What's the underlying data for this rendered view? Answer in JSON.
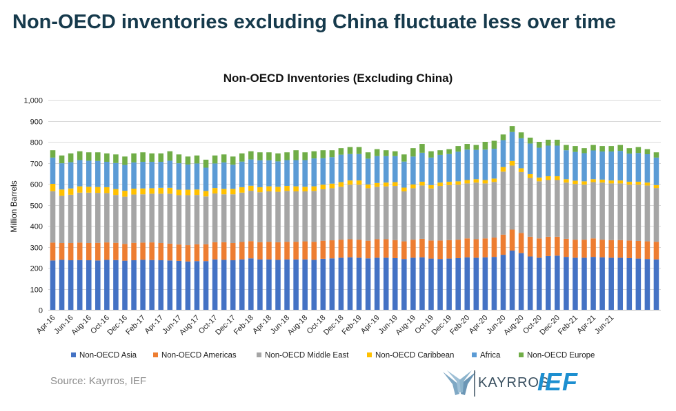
{
  "headline": "Non-OECD inventories excluding China fluctuate less over time",
  "source": "Source: Kayrros, IEF",
  "logos": {
    "kayrros": "KAYRROS",
    "ief": "IEF"
  },
  "chart_data": {
    "type": "bar",
    "stacked": true,
    "title": "Non-OECD Inventories (Excluding China)",
    "xlabel": "",
    "ylabel": "Million Barrels",
    "ylim": [
      0,
      1000
    ],
    "yticks": [
      0,
      100,
      200,
      300,
      400,
      500,
      600,
      700,
      800,
      900,
      1000
    ],
    "ytick_labels": [
      "0",
      "100",
      "200",
      "300",
      "400",
      "500",
      "600",
      "700",
      "800",
      "900",
      "1,000"
    ],
    "grid": true,
    "legend_position": "bottom",
    "xtick_labels": [
      "Apr-16",
      "Jun-16",
      "Aug-16",
      "Oct-16",
      "Dec-16",
      "Feb-17",
      "Apr-17",
      "Jun-17",
      "Aug-17",
      "Oct-17",
      "Dec-17",
      "Feb-18",
      "Apr-18",
      "Jun-18",
      "Aug-18",
      "Oct-18",
      "Dec-18",
      "Feb-19",
      "Apr-19",
      "Jun-19",
      "Aug-19",
      "Oct-19",
      "Dec-19",
      "Feb-20",
      "Apr-20",
      "Jun-20",
      "Aug-20",
      "Oct-20",
      "Dec-20",
      "Feb-21",
      "Apr-21",
      "Jun-21"
    ],
    "totals": [
      760,
      735,
      745,
      755,
      750,
      750,
      745,
      740,
      730,
      745,
      750,
      745,
      745,
      755,
      740,
      730,
      735,
      715,
      735,
      740,
      730,
      745,
      755,
      750,
      750,
      745,
      750,
      760,
      750,
      755,
      760,
      760,
      770,
      775,
      775,
      750,
      765,
      760,
      755,
      740,
      770,
      790,
      755,
      760,
      765,
      780,
      790,
      785,
      800,
      805,
      835,
      875,
      845,
      820,
      800,
      810,
      810,
      785,
      780,
      770,
      785,
      780,
      780,
      785,
      770,
      775,
      765,
      750
    ],
    "series": [
      {
        "name": "Non-OECD Asia",
        "color": "#4472c4",
        "values": [
          235,
          238,
          236,
          237,
          236,
          235,
          238,
          237,
          234,
          236,
          238,
          237,
          236,
          235,
          233,
          230,
          232,
          232,
          240,
          238,
          236,
          240,
          245,
          240,
          240,
          238,
          240,
          240,
          240,
          238,
          243,
          245,
          248,
          250,
          248,
          245,
          248,
          248,
          246,
          242,
          248,
          250,
          244,
          242,
          244,
          246,
          250,
          248,
          250,
          252,
          262,
          282,
          270,
          254,
          248,
          256,
          258,
          252,
          248,
          248,
          252,
          250,
          248,
          248,
          246,
          244,
          242,
          240
        ]
      },
      {
        "name": "Non-OECD Americas",
        "color": "#ed7d31",
        "values": [
          85,
          80,
          82,
          83,
          82,
          84,
          83,
          82,
          80,
          83,
          82,
          84,
          82,
          80,
          78,
          78,
          80,
          80,
          82,
          84,
          82,
          83,
          82,
          82,
          84,
          84,
          84,
          84,
          86,
          86,
          86,
          86,
          86,
          86,
          86,
          84,
          88,
          88,
          86,
          84,
          86,
          88,
          86,
          88,
          88,
          88,
          90,
          88,
          90,
          92,
          96,
          100,
          96,
          94,
          92,
          92,
          90,
          86,
          86,
          86,
          88,
          84,
          84,
          84,
          84,
          84,
          84,
          84
        ]
      },
      {
        "name": "Non-OECD Middle East",
        "color": "#a5a5a5",
        "values": [
          245,
          225,
          230,
          238,
          240,
          238,
          235,
          228,
          225,
          230,
          230,
          232,
          235,
          238,
          235,
          238,
          235,
          228,
          232,
          228,
          232,
          235,
          240,
          238,
          240,
          240,
          242,
          240,
          238,
          242,
          245,
          248,
          252,
          260,
          262,
          250,
          250,
          252,
          258,
          238,
          245,
          254,
          248,
          260,
          262,
          262,
          262,
          270,
          262,
          265,
          300,
          305,
          290,
          280,
          272,
          270,
          270,
          268,
          265,
          262,
          268,
          272,
          270,
          270,
          266,
          268,
          266,
          256
        ]
      },
      {
        "name": "Non-OECD Caribbean",
        "color": "#ffc000",
        "values": [
          35,
          30,
          30,
          30,
          28,
          28,
          28,
          28,
          28,
          28,
          28,
          26,
          28,
          28,
          26,
          26,
          26,
          26,
          26,
          26,
          26,
          26,
          24,
          24,
          24,
          24,
          24,
          24,
          22,
          22,
          22,
          22,
          22,
          20,
          20,
          18,
          18,
          18,
          18,
          18,
          18,
          18,
          16,
          16,
          16,
          16,
          16,
          16,
          16,
          16,
          22,
          22,
          18,
          18,
          18,
          18,
          18,
          16,
          16,
          16,
          14,
          14,
          14,
          14,
          14,
          14,
          14,
          14
        ]
      },
      {
        "name": "Africa",
        "color": "#5b9bd5",
        "values": [
          125,
          125,
          125,
          125,
          124,
          124,
          121,
          124,
          123,
          125,
          127,
          126,
          124,
          129,
          126,
          120,
          124,
          111,
          117,
          126,
          115,
          122,
          125,
          128,
          124,
          121,
          123,
          125,
          127,
          133,
          126,
          126,
          131,
          126,
          126,
          123,
          128,
          126,
          124,
          124,
          133,
          138,
          131,
          132,
          132,
          141,
          145,
          140,
          145,
          142,
          128,
          138,
          143,
          146,
          142,
          146,
          146,
          138,
          137,
          134,
          137,
          134,
          138,
          141,
          134,
          137,
          135,
          131
        ]
      },
      {
        "name": "Non-OECD Europe",
        "color": "#70ad47",
        "values": [
          35,
          37,
          42,
          42,
          40,
          41,
          40,
          41,
          40,
          43,
          45,
          40,
          40,
          45,
          42,
          38,
          38,
          38,
          38,
          38,
          39,
          39,
          39,
          38,
          38,
          38,
          37,
          47,
          37,
          34,
          38,
          33,
          31,
          33,
          33,
          30,
          33,
          28,
          23,
          34,
          40,
          42,
          30,
          22,
          23,
          27,
          27,
          23,
          37,
          38,
          27,
          28,
          28,
          28,
          28,
          28,
          28,
          25,
          28,
          24,
          26,
          26,
          26,
          28,
          26,
          28,
          24,
          25
        ]
      }
    ]
  }
}
